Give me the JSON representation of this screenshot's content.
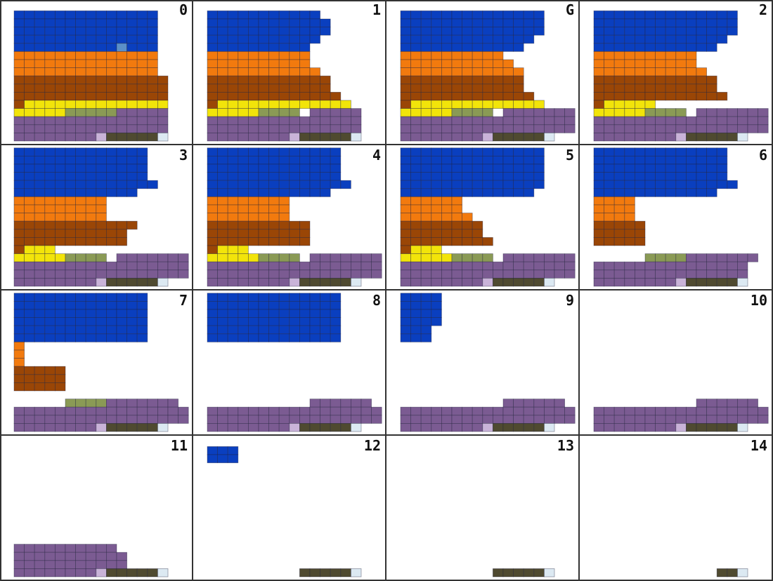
{
  "colors": {
    "blue": "#0a3fbf",
    "orange": "#f27a0e",
    "brown": "#9a4606",
    "yellow": "#f2e40a",
    "olive": "#8a9a55",
    "purple": "#7b5b92",
    "lilac": "#c9b3d8",
    "darkolive": "#4f4a30",
    "pale": "#dce9f2",
    "steel": "#5b8fc8",
    "white": "#ffffff",
    "cell_line": "#1f1f3a"
  },
  "panels": [
    {
      "label": "0",
      "rows": [
        [
          "blue:14"
        ],
        [
          "blue:14"
        ],
        [
          "blue:14"
        ],
        [
          "blue:14"
        ],
        [
          "blue:10",
          "steel:1",
          "blue:3"
        ],
        [
          "orange:14"
        ],
        [
          "orange:14"
        ],
        [
          "orange:14"
        ],
        [
          "brown:15"
        ],
        [
          "brown:15"
        ],
        [
          "brown:15"
        ],
        [
          "brown:1",
          "yellow:14"
        ],
        [
          "yellow:5",
          "olive:5",
          "purple:5"
        ],
        [
          "purple:15"
        ],
        [
          "purple:15"
        ],
        [
          "purple:8",
          "lilac:1",
          "darkolive:5",
          "pale:1"
        ]
      ]
    },
    {
      "label": "1",
      "rows": [
        [
          "blue:11"
        ],
        [
          "blue:12"
        ],
        [
          "blue:12"
        ],
        [
          "blue:11"
        ],
        [
          "blue:10"
        ],
        [
          "orange:10"
        ],
        [
          "orange:10"
        ],
        [
          "orange:11"
        ],
        [
          "brown:12"
        ],
        [
          "brown:12"
        ],
        [
          "brown:13"
        ],
        [
          "brown:1",
          "yellow:13"
        ],
        [
          "yellow:5",
          "olive:4",
          "white:1",
          "purple:5"
        ],
        [
          "purple:15"
        ],
        [
          "purple:15"
        ],
        [
          "purple:8",
          "lilac:1",
          "darkolive:5",
          "pale:1"
        ]
      ]
    },
    {
      "label": "G",
      "rows": [
        [
          "blue:14"
        ],
        [
          "blue:14"
        ],
        [
          "blue:14"
        ],
        [
          "blue:13"
        ],
        [
          "blue:12"
        ],
        [
          "orange:10"
        ],
        [
          "orange:11"
        ],
        [
          "orange:12"
        ],
        [
          "brown:12"
        ],
        [
          "brown:12"
        ],
        [
          "brown:13"
        ],
        [
          "brown:1",
          "yellow:13"
        ],
        [
          "yellow:5",
          "olive:4",
          "white:1",
          "purple:7"
        ],
        [
          "purple:17"
        ],
        [
          "purple:17"
        ],
        [
          "purple:8",
          "lilac:1",
          "darkolive:5",
          "pale:1"
        ]
      ]
    },
    {
      "label": "2",
      "rows": [
        [
          "blue:14"
        ],
        [
          "blue:14"
        ],
        [
          "blue:14"
        ],
        [
          "blue:13"
        ],
        [
          "blue:12"
        ],
        [
          "orange:10"
        ],
        [
          "orange:10"
        ],
        [
          "orange:11"
        ],
        [
          "brown:12"
        ],
        [
          "brown:12"
        ],
        [
          "brown:13"
        ],
        [
          "brown:1",
          "yellow:5"
        ],
        [
          "yellow:5",
          "olive:4",
          "white:1",
          "purple:7"
        ],
        [
          "purple:17"
        ],
        [
          "purple:17"
        ],
        [
          "purple:8",
          "lilac:1",
          "darkolive:5",
          "pale:1"
        ]
      ]
    },
    {
      "label": "3",
      "rows": [
        [
          "blue:13"
        ],
        [
          "blue:13"
        ],
        [
          "blue:13"
        ],
        [
          "blue:13"
        ],
        [
          "blue:14"
        ],
        [
          "blue:12"
        ],
        [
          "orange:9"
        ],
        [
          "orange:9"
        ],
        [
          "orange:9"
        ],
        [
          "brown:12"
        ],
        [
          "brown:11"
        ],
        [
          "brown:11"
        ],
        [
          "brown:1",
          "yellow:3"
        ],
        [
          "yellow:5",
          "olive:4",
          "white:1",
          "purple:7"
        ],
        [
          "purple:17"
        ],
        [
          "purple:17"
        ],
        [
          "purple:8",
          "lilac:1",
          "darkolive:5",
          "pale:1"
        ]
      ]
    },
    {
      "label": "4",
      "rows": [
        [
          "blue:13"
        ],
        [
          "blue:13"
        ],
        [
          "blue:13"
        ],
        [
          "blue:13"
        ],
        [
          "blue:14"
        ],
        [
          "blue:12"
        ],
        [
          "orange:8"
        ],
        [
          "orange:8"
        ],
        [
          "orange:8"
        ],
        [
          "brown:10"
        ],
        [
          "brown:10"
        ],
        [
          "brown:10"
        ],
        [
          "brown:1",
          "yellow:3"
        ],
        [
          "yellow:5",
          "olive:4",
          "white:1",
          "purple:7"
        ],
        [
          "purple:17"
        ],
        [
          "purple:17"
        ],
        [
          "purple:8",
          "lilac:1",
          "darkolive:5",
          "pale:1"
        ]
      ]
    },
    {
      "label": "5",
      "rows": [
        [
          "blue:14"
        ],
        [
          "blue:14"
        ],
        [
          "blue:14"
        ],
        [
          "blue:14"
        ],
        [
          "blue:14"
        ],
        [
          "blue:13"
        ],
        [
          "orange:6"
        ],
        [
          "orange:6"
        ],
        [
          "orange:7"
        ],
        [
          "brown:8"
        ],
        [
          "brown:8"
        ],
        [
          "brown:9"
        ],
        [
          "brown:1",
          "yellow:3"
        ],
        [
          "yellow:5",
          "olive:4",
          "white:1",
          "purple:7"
        ],
        [
          "purple:17"
        ],
        [
          "purple:17"
        ],
        [
          "purple:8",
          "lilac:1",
          "darkolive:5",
          "pale:1"
        ]
      ]
    },
    {
      "label": "6",
      "rows": [
        [
          "blue:13"
        ],
        [
          "blue:13"
        ],
        [
          "blue:13"
        ],
        [
          "blue:13"
        ],
        [
          "blue:14"
        ],
        [
          "blue:12"
        ],
        [
          "orange:4"
        ],
        [
          "orange:4"
        ],
        [
          "orange:4"
        ],
        [
          "brown:5"
        ],
        [
          "brown:5"
        ],
        [
          "brown:5"
        ],
        [
          "white:1"
        ],
        [
          "white:5",
          "olive:4",
          "purple:7"
        ],
        [
          "purple:15"
        ],
        [
          "purple:15"
        ],
        [
          "purple:8",
          "lilac:1",
          "darkolive:5",
          "pale:1"
        ]
      ]
    },
    {
      "label": "7",
      "rows": [
        [
          "blue:13"
        ],
        [
          "blue:13"
        ],
        [
          "blue:13"
        ],
        [
          "blue:13"
        ],
        [
          "blue:13"
        ],
        [
          "blue:13"
        ],
        [
          "orange:1"
        ],
        [
          "orange:1"
        ],
        [
          "orange:1"
        ],
        [
          "brown:5"
        ],
        [
          "brown:5"
        ],
        [
          "brown:5"
        ],
        [
          "white:1"
        ],
        [
          "white:5",
          "olive:4",
          "purple:7"
        ],
        [
          "purple:17"
        ],
        [
          "purple:17"
        ],
        [
          "purple:8",
          "lilac:1",
          "darkolive:5",
          "pale:1"
        ]
      ]
    },
    {
      "label": "8",
      "rows": [
        [
          "blue:13"
        ],
        [
          "blue:13"
        ],
        [
          "blue:13"
        ],
        [
          "blue:13"
        ],
        [
          "blue:13"
        ],
        [
          "blue:13"
        ],
        [
          "white:1"
        ],
        [
          "white:1"
        ],
        [
          "white:1"
        ],
        [
          "white:1"
        ],
        [
          "white:1"
        ],
        [
          "white:1"
        ],
        [
          "white:1"
        ],
        [
          "white:10",
          "purple:6"
        ],
        [
          "purple:17"
        ],
        [
          "purple:17"
        ],
        [
          "purple:8",
          "lilac:1",
          "darkolive:5",
          "pale:1"
        ]
      ]
    },
    {
      "label": "9",
      "rows": [
        [
          "blue:4"
        ],
        [
          "blue:4"
        ],
        [
          "blue:4"
        ],
        [
          "blue:4"
        ],
        [
          "blue:3"
        ],
        [
          "blue:3"
        ],
        [
          "white:1"
        ],
        [
          "white:1"
        ],
        [
          "white:1"
        ],
        [
          "white:1"
        ],
        [
          "white:1"
        ],
        [
          "white:1"
        ],
        [
          "white:1"
        ],
        [
          "white:10",
          "purple:6"
        ],
        [
          "purple:17"
        ],
        [
          "purple:17"
        ],
        [
          "purple:8",
          "lilac:1",
          "darkolive:5",
          "pale:1"
        ]
      ]
    },
    {
      "label": "10",
      "rows": [
        [
          "white:1"
        ],
        [
          "white:1"
        ],
        [
          "white:1"
        ],
        [
          "white:1"
        ],
        [
          "white:1"
        ],
        [
          "white:1"
        ],
        [
          "white:1"
        ],
        [
          "white:1"
        ],
        [
          "white:1"
        ],
        [
          "white:1"
        ],
        [
          "white:1"
        ],
        [
          "white:1"
        ],
        [
          "white:1"
        ],
        [
          "white:10",
          "purple:6"
        ],
        [
          "purple:17"
        ],
        [
          "purple:17"
        ],
        [
          "purple:8",
          "lilac:1",
          "darkolive:5",
          "pale:1"
        ]
      ]
    },
    {
      "label": "11",
      "rows": [
        [
          "white:1"
        ],
        [
          "white:1"
        ],
        [
          "white:1"
        ],
        [
          "white:1"
        ],
        [
          "white:1"
        ],
        [
          "white:1"
        ],
        [
          "white:1"
        ],
        [
          "white:1"
        ],
        [
          "white:1"
        ],
        [
          "white:1"
        ],
        [
          "white:1"
        ],
        [
          "white:1"
        ],
        [
          "white:1"
        ],
        [
          "purple:10"
        ],
        [
          "purple:11"
        ],
        [
          "purple:11"
        ],
        [
          "purple:8",
          "lilac:1",
          "darkolive:5",
          "pale:1"
        ]
      ]
    },
    {
      "label": "12",
      "rows": [
        [
          "blue:3"
        ],
        [
          "blue:3"
        ],
        [
          "white:1"
        ],
        [
          "white:1"
        ],
        [
          "white:1"
        ],
        [
          "white:1"
        ],
        [
          "white:1"
        ],
        [
          "white:1"
        ],
        [
          "white:1"
        ],
        [
          "white:1"
        ],
        [
          "white:1"
        ],
        [
          "white:1"
        ],
        [
          "white:1"
        ],
        [
          "white:1"
        ],
        [
          "white:1"
        ],
        [
          "white:9",
          "darkolive:5",
          "pale:1"
        ]
      ]
    },
    {
      "label": "13",
      "rows": [
        [
          "white:1"
        ],
        [
          "white:1"
        ],
        [
          "white:1"
        ],
        [
          "white:1"
        ],
        [
          "white:1"
        ],
        [
          "white:1"
        ],
        [
          "white:1"
        ],
        [
          "white:1"
        ],
        [
          "white:1"
        ],
        [
          "white:1"
        ],
        [
          "white:1"
        ],
        [
          "white:1"
        ],
        [
          "white:1"
        ],
        [
          "white:1"
        ],
        [
          "white:1"
        ],
        [
          "white:9",
          "darkolive:5",
          "pale:1"
        ]
      ]
    },
    {
      "label": "14",
      "rows": [
        [
          "white:1"
        ],
        [
          "white:1"
        ],
        [
          "white:1"
        ],
        [
          "white:1"
        ],
        [
          "white:1"
        ],
        [
          "white:1"
        ],
        [
          "white:1"
        ],
        [
          "white:1"
        ],
        [
          "white:1"
        ],
        [
          "white:1"
        ],
        [
          "white:1"
        ],
        [
          "white:1"
        ],
        [
          "white:1"
        ],
        [
          "white:1"
        ],
        [
          "white:1"
        ],
        [
          "white:12",
          "darkolive:2",
          "pale:1"
        ]
      ]
    }
  ]
}
